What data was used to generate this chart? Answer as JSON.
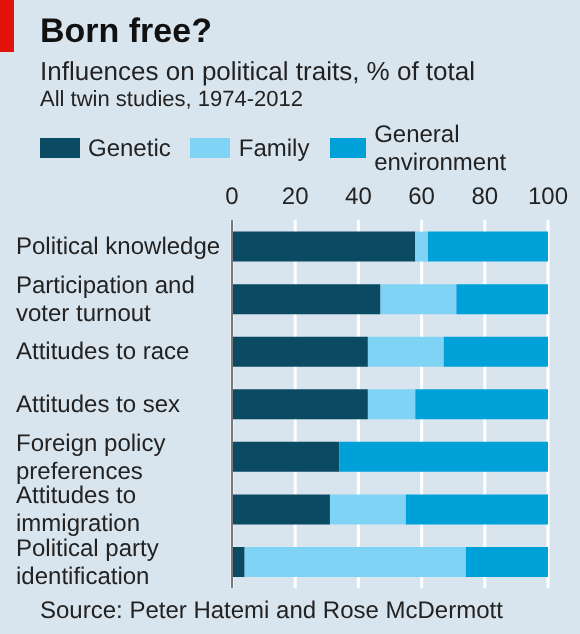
{
  "chart_data": {
    "type": "bar",
    "orientation": "horizontal",
    "stacked": true,
    "title": "Born free?",
    "subtitle": "Influences on political traits, % of total",
    "annotations": [
      "All twin studies, 1974-2012",
      "Source: Peter Hatemi and Rose McDermott"
    ],
    "categories": [
      "Political knowledge",
      "Participation and voter turnout",
      "Attitudes to race",
      "Attitudes to sex",
      "Foreign policy preferences",
      "Attitudes to immigration",
      "Political party identification"
    ],
    "series": [
      {
        "name": "Genetic",
        "color": "#0b4a63",
        "values": [
          58,
          47,
          43,
          43,
          34,
          31,
          4
        ]
      },
      {
        "name": "Family",
        "color": "#7fd3f5",
        "values": [
          4,
          24,
          24,
          15,
          0,
          24,
          70
        ]
      },
      {
        "name": "General environment",
        "color": "#00a0d8",
        "values": [
          38,
          29,
          33,
          42,
          66,
          45,
          26
        ]
      }
    ],
    "xlim": [
      0,
      100
    ],
    "xticks": [
      0,
      20,
      40,
      60,
      80,
      100
    ],
    "grid": "x",
    "legend": "top left"
  }
}
